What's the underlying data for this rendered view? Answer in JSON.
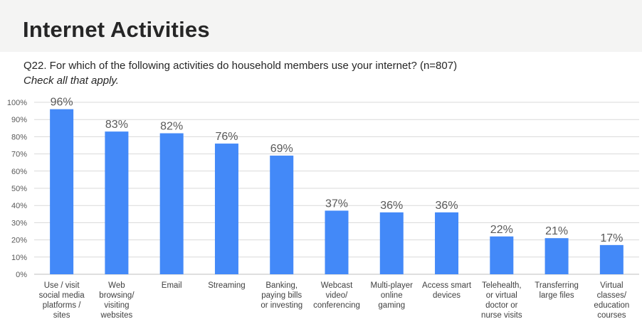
{
  "page": {
    "title": "Internet Activities",
    "question": "Q22. For which of the following activities do household members use your internet? (n=807)",
    "instruction": "Check all that apply."
  },
  "colors": {
    "bar": "#4389f8",
    "header_bg": "#f4f4f3",
    "gridline": "#d9d9d9"
  },
  "chart_data": {
    "type": "bar",
    "categories": [
      "Use / visit social media platforms / sites",
      "Web browsing/ visiting websites",
      "Email",
      "Streaming",
      "Banking, paying bills or investing",
      "Webcast video/ conferencing",
      "Multi-player online gaming",
      "Access smart devices",
      "Telehealth, or virtual doctor or nurse visits",
      "Transferring large files",
      "Virtual classes/ education courses"
    ],
    "category_lines": [
      [
        "Use / visit",
        "social media",
        "platforms /",
        "sites"
      ],
      [
        "Web",
        "browsing/",
        "visiting",
        "websites"
      ],
      [
        "Email"
      ],
      [
        "Streaming"
      ],
      [
        "Banking,",
        "paying bills",
        "or investing"
      ],
      [
        "Webcast",
        "video/",
        "conferencing"
      ],
      [
        "Multi-player",
        "online",
        "gaming"
      ],
      [
        "Access smart",
        "devices"
      ],
      [
        "Telehealth,",
        "or virtual",
        "doctor or",
        "nurse visits"
      ],
      [
        "Transferring",
        "large files"
      ],
      [
        "Virtual",
        "classes/",
        "education",
        "courses"
      ]
    ],
    "values": [
      96,
      83,
      82,
      76,
      69,
      37,
      36,
      36,
      22,
      21,
      17
    ],
    "data_labels": [
      "96%",
      "83%",
      "82%",
      "76%",
      "69%",
      "37%",
      "36%",
      "36%",
      "22%",
      "21%",
      "17%"
    ],
    "ylim": [
      0,
      100
    ],
    "yticks": [
      0,
      10,
      20,
      30,
      40,
      50,
      60,
      70,
      80,
      90,
      100
    ],
    "ytick_labels": [
      "0%",
      "10%",
      "20%",
      "30%",
      "40%",
      "50%",
      "60%",
      "70%",
      "80%",
      "90%",
      "100%"
    ],
    "grid": true,
    "legend": "none"
  }
}
